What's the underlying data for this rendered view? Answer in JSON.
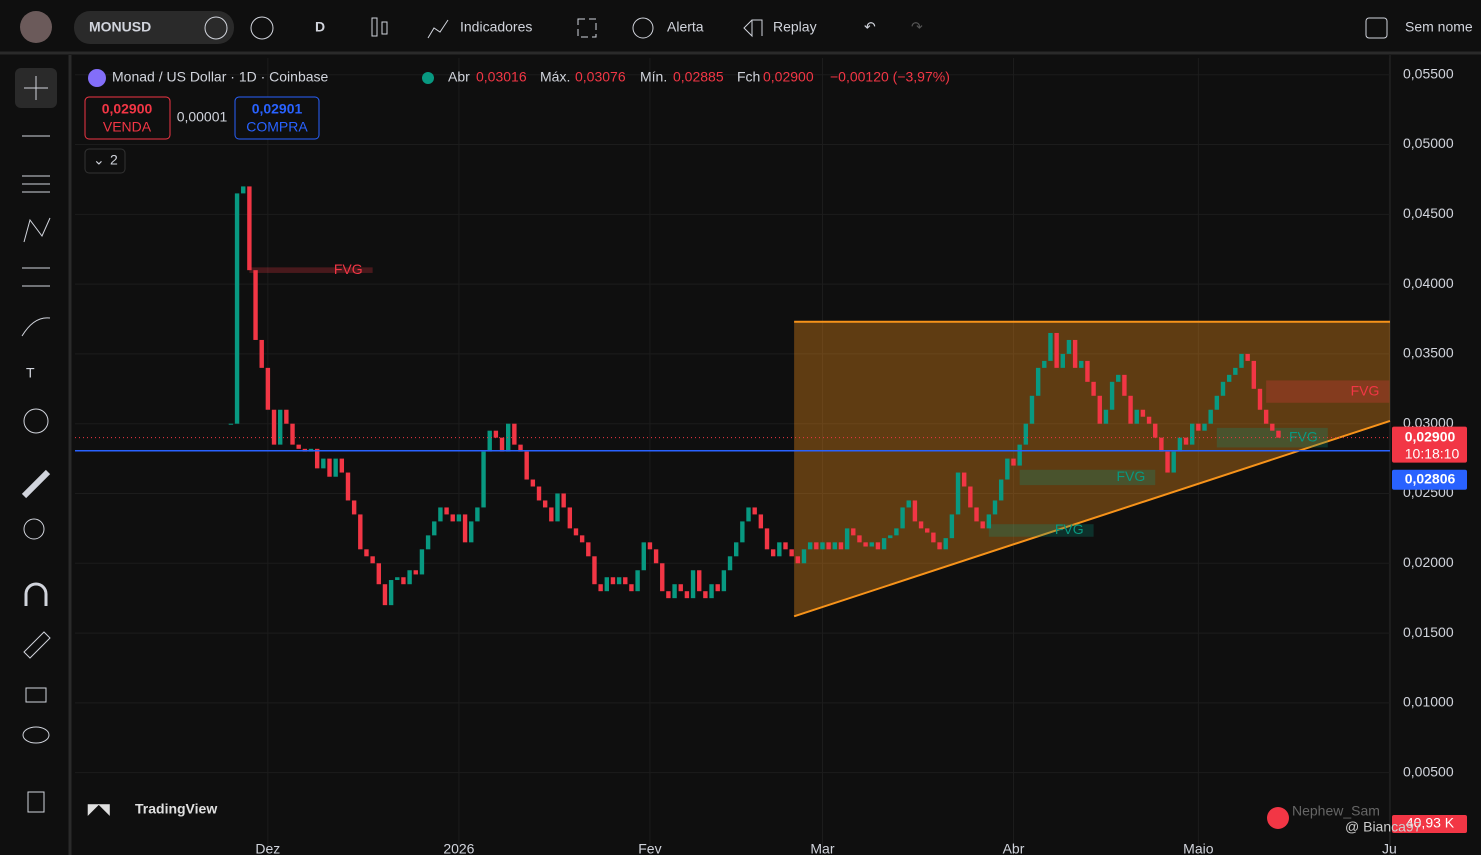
{
  "toolbar": {
    "symbol": "MONUSD",
    "interval": "D",
    "indicators": "Indicadores",
    "alert": "Alerta",
    "replay": "Replay",
    "layout": "Sem nome"
  },
  "legend": {
    "title": "Monad / US Dollar · 1D · Coinbase",
    "open_label": "Abr",
    "open": "0,03016",
    "high_label": "Máx.",
    "high": "0,03076",
    "low_label": "Mín.",
    "low": "0,02885",
    "close_label": "Fch",
    "close": "0,02900",
    "change": "−0,00120 (−3,97%)",
    "sell_price": "0,02900",
    "sell_label": "VENDA",
    "spread": "0,00001",
    "buy_price": "0,02901",
    "buy_label": "COMPRA",
    "indicator_count": "2"
  },
  "chart_data": {
    "type": "candlestick",
    "up_color": "#089981",
    "down_color": "#f23645",
    "values": [
      0.03,
      0.0465,
      0.047,
      0.041,
      0.036,
      0.034,
      0.031,
      0.0285,
      0.031,
      0.03,
      0.0285,
      0.0282,
      0.028,
      0.0282,
      0.0268,
      0.0275,
      0.0262,
      0.0275,
      0.0265,
      0.0245,
      0.0235,
      0.021,
      0.0205,
      0.02,
      0.0185,
      0.017,
      0.0188,
      0.019,
      0.0185,
      0.0195,
      0.0192,
      0.021,
      0.022,
      0.023,
      0.024,
      0.0235,
      0.023,
      0.0235,
      0.0215,
      0.023,
      0.024,
      0.028,
      0.0295,
      0.029,
      0.028,
      0.03,
      0.0285,
      0.028,
      0.026,
      0.0255,
      0.0245,
      0.024,
      0.023,
      0.025,
      0.024,
      0.0225,
      0.022,
      0.0215,
      0.0205,
      0.0185,
      0.018,
      0.019,
      0.0185,
      0.019,
      0.0185,
      0.018,
      0.0195,
      0.0215,
      0.021,
      0.02,
      0.018,
      0.0175,
      0.0185,
      0.018,
      0.0175,
      0.0195,
      0.018,
      0.0175,
      0.0185,
      0.018,
      0.0195,
      0.0205,
      0.0215,
      0.023,
      0.024,
      0.0235,
      0.0225,
      0.021,
      0.0205,
      0.0215,
      0.021,
      0.0205,
      0.02,
      0.021,
      0.0215,
      0.021,
      0.0215,
      0.021,
      0.0215,
      0.021,
      0.0225,
      0.022,
      0.0215,
      0.0212,
      0.0215,
      0.021,
      0.0218,
      0.022,
      0.0225,
      0.024,
      0.0245,
      0.023,
      0.0225,
      0.0222,
      0.0215,
      0.021,
      0.0218,
      0.0235,
      0.0265,
      0.0255,
      0.024,
      0.023,
      0.0225,
      0.0235,
      0.0245,
      0.026,
      0.0275,
      0.027,
      0.0285,
      0.03,
      0.032,
      0.034,
      0.0345,
      0.0365,
      0.034,
      0.035,
      0.036,
      0.034,
      0.0345,
      0.033,
      0.032,
      0.03,
      0.031,
      0.033,
      0.0335,
      0.032,
      0.03,
      0.031,
      0.0305,
      0.03,
      0.029,
      0.028,
      0.0265,
      0.028,
      0.029,
      0.0285,
      0.03,
      0.0295,
      0.03,
      0.031,
      0.032,
      0.033,
      0.0335,
      0.034,
      0.035,
      0.0345,
      0.0325,
      0.031,
      0.03,
      0.0295,
      0.029
    ],
    "xlim": [
      -25.3,
      188.1
    ],
    "xticks": [
      {
        "value": 6,
        "label": "Dez"
      },
      {
        "value": 37,
        "label": "2026"
      },
      {
        "value": 68,
        "label": "Fev"
      },
      {
        "value": 96,
        "label": "Mar"
      },
      {
        "value": 127,
        "label": "Abr"
      },
      {
        "value": 157,
        "label": "Maio"
      },
      {
        "value": 188,
        "label": "Ju"
      }
    ],
    "ylim": [
      -0.0009,
      0.0562
    ],
    "yticks": [
      {
        "value": 0.055,
        "label": "0,05500"
      },
      {
        "value": 0.05,
        "label": "0,05000"
      },
      {
        "value": 0.045,
        "label": "0,04500"
      },
      {
        "value": 0.04,
        "label": "0,04000"
      },
      {
        "value": 0.035,
        "label": "0,03500"
      },
      {
        "value": 0.03,
        "label": "0,03000"
      },
      {
        "value": 0.025,
        "label": "0,02500"
      },
      {
        "value": 0.02,
        "label": "0,02000"
      },
      {
        "value": 0.015,
        "label": "0,01500"
      },
      {
        "value": 0.01,
        "label": "0,01000"
      },
      {
        "value": 0.005,
        "label": "0,00500"
      }
    ],
    "grid": true,
    "triangle": {
      "x": [
        91.4,
        188.1
      ],
      "top": 0.0373,
      "bottom": [
        0.0162,
        0.0302
      ],
      "color": "#f7931a"
    },
    "fvg": [
      {
        "label": "FVG",
        "x": [
          3,
          23
        ],
        "y": [
          0.0408,
          0.0412
        ],
        "color": "#f23645"
      },
      {
        "label": "FVG",
        "x": [
          168,
          188
        ],
        "y": [
          0.0315,
          0.0331
        ],
        "color": "#f23645"
      },
      {
        "label": "FVG",
        "x": [
          160,
          178
        ],
        "y": [
          0.0283,
          0.0297
        ],
        "color": "#089981"
      },
      {
        "label": "FVG",
        "x": [
          128,
          150
        ],
        "y": [
          0.0256,
          0.0267
        ],
        "color": "#089981"
      },
      {
        "label": "FVG",
        "x": [
          123,
          140
        ],
        "y": [
          0.0219,
          0.0228
        ],
        "color": "#089981"
      }
    ],
    "hline": {
      "value": 0.02806,
      "label": "0,02806",
      "color": "#2962ff"
    },
    "last_price": {
      "value": 0.029,
      "label": "0,02900",
      "countdown": "10:18:10"
    },
    "volume_label": "40,93 K"
  },
  "watermark": {
    "brand": "TradingView",
    "user": "Nephew_Sam",
    "author": "@ Bianca97"
  }
}
